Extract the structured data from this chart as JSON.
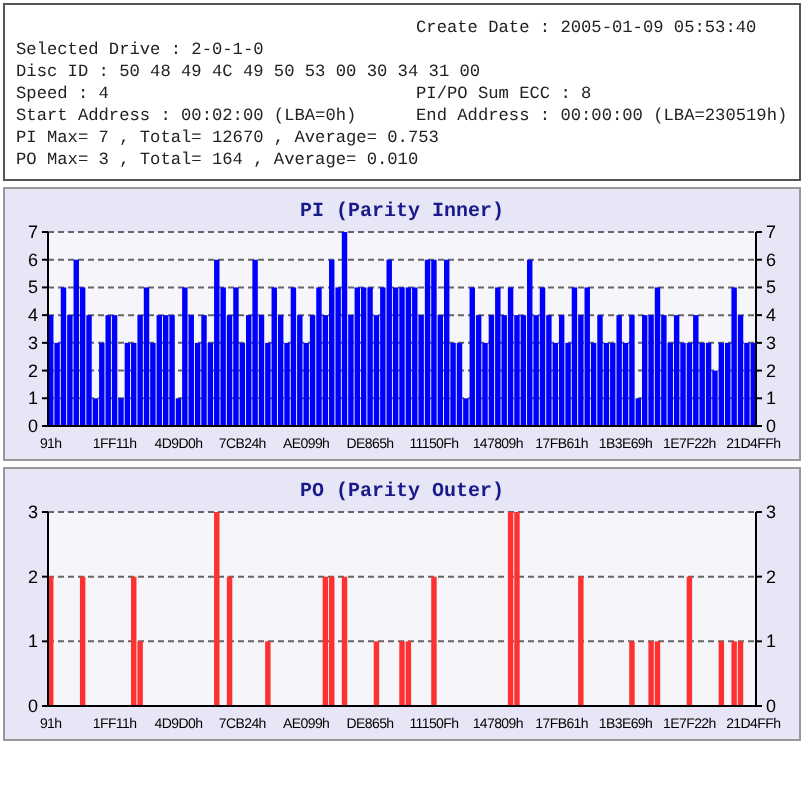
{
  "chart_data": [
    {
      "type": "other",
      "annotations": [
        "Create Date : 2005-01-09 05:53:40",
        "Selected Drive : 2-0-1-0",
        "Disc ID : 50 48 49 4C 49 50 53 00 30 34 31 00",
        "Speed : 4",
        "PI/PO Sum ECC : 8",
        "Start Address : 00:02:00 (LBA=0h)",
        "End Address : 00:00:00 (LBA=230519h)",
        "PI Max= 7 , Total= 12670 , Average= 0.753",
        "PO Max= 3 , Total= 164 , Average= 0.010"
      ]
    },
    {
      "type": "bar",
      "title": "PI (Parity Inner)",
      "color": "#0000ff",
      "ylim": [
        0,
        7
      ],
      "yticks": [
        0,
        1,
        2,
        3,
        4,
        5,
        6,
        7
      ],
      "y2lim": [
        0,
        7
      ],
      "y2ticks": [
        0,
        1,
        2,
        3,
        4,
        5,
        6,
        7
      ],
      "grid": "y",
      "categories": [
        "91h",
        null,
        null,
        null,
        null,
        null,
        null,
        null,
        null,
        null,
        "1FF11h",
        null,
        null,
        null,
        null,
        null,
        null,
        null,
        null,
        null,
        "4D9D0h",
        null,
        null,
        null,
        null,
        null,
        null,
        null,
        null,
        null,
        "7CB24h",
        null,
        null,
        null,
        null,
        null,
        null,
        null,
        null,
        null,
        "AE099h",
        null,
        null,
        null,
        null,
        null,
        null,
        null,
        null,
        null,
        "DE865h",
        null,
        null,
        null,
        null,
        null,
        null,
        null,
        null,
        null,
        "11150Fh",
        null,
        null,
        null,
        null,
        null,
        null,
        null,
        null,
        null,
        "147809h",
        null,
        null,
        null,
        null,
        null,
        null,
        null,
        null,
        null,
        "17FB61h",
        null,
        null,
        null,
        null,
        null,
        null,
        null,
        null,
        null,
        "1B3E69h",
        null,
        null,
        null,
        null,
        null,
        null,
        null,
        null,
        null,
        "1E7F22h",
        null,
        null,
        null,
        null,
        null,
        null,
        null,
        null,
        null,
        "21D4FFh"
      ],
      "values": [
        4,
        3,
        5,
        4,
        6,
        5,
        4,
        1,
        3,
        4,
        4,
        1,
        3,
        3,
        4,
        5,
        3,
        4,
        4,
        4,
        1,
        5,
        4,
        3,
        4,
        3,
        6,
        5,
        4,
        5,
        3,
        4,
        6,
        4,
        3,
        5,
        4,
        3,
        5,
        4,
        3,
        4,
        5,
        4,
        6,
        5,
        7,
        4,
        5,
        5,
        5,
        4,
        5,
        6,
        5,
        5,
        5,
        5,
        4,
        6,
        6,
        4,
        6,
        3,
        3,
        1,
        5,
        4,
        3,
        4,
        5,
        4,
        5,
        4,
        4,
        6,
        4,
        5,
        4,
        3,
        4,
        3,
        5,
        4,
        5,
        3,
        4,
        3,
        3,
        4,
        3,
        4,
        1,
        4,
        4,
        5,
        4,
        3,
        4,
        3,
        3,
        4,
        3,
        3,
        2,
        3,
        3,
        5,
        4,
        3,
        3
      ]
    },
    {
      "type": "bar",
      "title": "PO (Parity Outer)",
      "color": "#ff3030",
      "ylim": [
        0,
        3
      ],
      "yticks": [
        0,
        1,
        2,
        3
      ],
      "y2lim": [
        0,
        3
      ],
      "y2ticks": [
        0,
        1,
        2,
        3
      ],
      "grid": "y",
      "categories": [
        "91h",
        null,
        null,
        null,
        null,
        null,
        null,
        null,
        null,
        null,
        "1FF11h",
        null,
        null,
        null,
        null,
        null,
        null,
        null,
        null,
        null,
        "4D9D0h",
        null,
        null,
        null,
        null,
        null,
        null,
        null,
        null,
        null,
        "7CB24h",
        null,
        null,
        null,
        null,
        null,
        null,
        null,
        null,
        null,
        "AE099h",
        null,
        null,
        null,
        null,
        null,
        null,
        null,
        null,
        null,
        "DE865h",
        null,
        null,
        null,
        null,
        null,
        null,
        null,
        null,
        null,
        "11150Fh",
        null,
        null,
        null,
        null,
        null,
        null,
        null,
        null,
        null,
        "147809h",
        null,
        null,
        null,
        null,
        null,
        null,
        null,
        null,
        null,
        "17FB61h",
        null,
        null,
        null,
        null,
        null,
        null,
        null,
        null,
        null,
        "1B3E69h",
        null,
        null,
        null,
        null,
        null,
        null,
        null,
        null,
        null,
        "1E7F22h",
        null,
        null,
        null,
        null,
        null,
        null,
        null,
        null,
        null,
        "21D4FFh"
      ],
      "values": [
        2,
        0,
        0,
        0,
        0,
        2,
        0,
        0,
        0,
        0,
        0,
        0,
        0,
        2,
        1,
        0,
        0,
        0,
        0,
        0,
        0,
        0,
        0,
        0,
        0,
        0,
        3,
        0,
        2,
        0,
        0,
        0,
        0,
        0,
        1,
        0,
        0,
        0,
        0,
        0,
        0,
        0,
        0,
        2,
        2,
        0,
        2,
        0,
        0,
        0,
        0,
        1,
        0,
        0,
        0,
        1,
        1,
        0,
        0,
        0,
        2,
        0,
        0,
        0,
        0,
        0,
        0,
        0,
        0,
        0,
        0,
        0,
        3,
        3,
        0,
        0,
        0,
        0,
        0,
        0,
        0,
        0,
        0,
        2,
        0,
        0,
        0,
        0,
        0,
        0,
        0,
        1,
        0,
        0,
        1,
        1,
        0,
        0,
        0,
        0,
        2,
        0,
        0,
        0,
        0,
        1,
        0,
        1,
        1,
        0,
        0
      ]
    }
  ]
}
